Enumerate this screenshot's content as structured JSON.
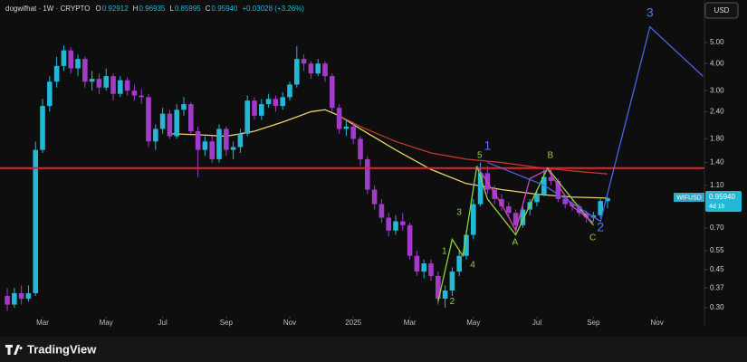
{
  "header": {
    "title": "dogwifhat · 1W · CRYPTO",
    "fields": [
      {
        "key": "O",
        "value": "0.92912"
      },
      {
        "key": "H",
        "value": "0.96935"
      },
      {
        "key": "L",
        "value": "0.85995"
      },
      {
        "key": "C",
        "value": "0.95940"
      }
    ],
    "change": "+0.03028 (+3.26%)"
  },
  "currency_button": "USD",
  "logo": "TradingView",
  "price_tag": {
    "symbol": "WIFUSD",
    "price": "0.95940",
    "countdown": "4d 1h"
  },
  "chart_data": {
    "type": "candlestick",
    "log_scale": true,
    "up_color": "#22b8d6",
    "down_color": "#a03cc8",
    "xlim": [
      -1.03,
      98.72
    ],
    "ylim": [
      0.2476,
      7.85
    ],
    "xticks": [
      {
        "value": 5,
        "label": "Mar"
      },
      {
        "value": 14,
        "label": "May"
      },
      {
        "value": 22,
        "label": "Jul"
      },
      {
        "value": 31,
        "label": "Sep"
      },
      {
        "value": 40,
        "label": "Nov"
      },
      {
        "value": 49,
        "label": "2025"
      },
      {
        "value": 57,
        "label": "Mar"
      },
      {
        "value": 66,
        "label": "May"
      },
      {
        "value": 75,
        "label": "Jul"
      },
      {
        "value": 83,
        "label": "Sep"
      },
      {
        "value": 92,
        "label": "Nov"
      }
    ],
    "yticks": [
      {
        "value": 5,
        "label": "5.00"
      },
      {
        "value": 4,
        "label": "4.00"
      },
      {
        "value": 3,
        "label": "3.00"
      },
      {
        "value": 2.4,
        "label": "2.40"
      },
      {
        "value": 1.8,
        "label": "1.80"
      },
      {
        "value": 1.4,
        "label": "1.40"
      },
      {
        "value": 1.1,
        "label": "1.10"
      },
      {
        "value": 0.7,
        "label": "0.70"
      },
      {
        "value": 0.55,
        "label": "0.55"
      },
      {
        "value": 0.45,
        "label": "0.45"
      },
      {
        "value": 0.37,
        "label": "0.37"
      },
      {
        "value": 0.3,
        "label": "0.30"
      }
    ],
    "x": [
      0,
      1,
      2,
      3,
      4,
      5,
      6,
      7,
      8,
      9,
      10,
      11,
      12,
      13,
      14,
      15,
      16,
      17,
      18,
      19,
      20,
      21,
      22,
      23,
      24,
      25,
      26,
      27,
      28,
      29,
      30,
      31,
      32,
      33,
      34,
      35,
      36,
      37,
      38,
      39,
      40,
      41,
      42,
      43,
      44,
      45,
      46,
      47,
      48,
      49,
      50,
      51,
      52,
      53,
      54,
      55,
      56,
      57,
      58,
      59,
      60,
      61,
      62,
      63,
      64,
      65,
      66,
      67,
      68,
      69,
      70,
      71,
      72,
      73,
      74,
      75,
      76,
      77,
      78,
      79,
      80,
      81,
      82,
      83,
      84,
      85
    ],
    "ohlc": [
      [
        0.34,
        0.37,
        0.29,
        0.31
      ],
      [
        0.31,
        0.37,
        0.3,
        0.35
      ],
      [
        0.35,
        0.38,
        0.31,
        0.33
      ],
      [
        0.33,
        0.38,
        0.32,
        0.35
      ],
      [
        0.35,
        1.75,
        0.34,
        1.6
      ],
      [
        1.6,
        2.75,
        1.55,
        2.55
      ],
      [
        2.55,
        3.5,
        2.4,
        3.3
      ],
      [
        3.3,
        4.3,
        3.1,
        3.9
      ],
      [
        3.9,
        4.85,
        3.7,
        4.6
      ],
      [
        4.6,
        4.75,
        3.6,
        3.8
      ],
      [
        3.8,
        4.4,
        3.5,
        4.2
      ],
      [
        4.2,
        4.3,
        3.1,
        3.3
      ],
      [
        3.3,
        3.7,
        3.0,
        3.4
      ],
      [
        3.4,
        3.6,
        2.9,
        3.1
      ],
      [
        3.1,
        3.8,
        3.0,
        3.5
      ],
      [
        3.5,
        3.6,
        2.7,
        2.9
      ],
      [
        2.9,
        3.5,
        2.8,
        3.35
      ],
      [
        3.35,
        3.45,
        2.85,
        3.0
      ],
      [
        3.0,
        3.2,
        2.7,
        2.85
      ],
      [
        2.85,
        3.05,
        2.6,
        2.8
      ],
      [
        2.8,
        2.9,
        1.65,
        1.75
      ],
      [
        1.75,
        2.1,
        1.6,
        2.0
      ],
      [
        2.0,
        2.5,
        1.9,
        2.35
      ],
      [
        2.35,
        2.45,
        1.8,
        1.85
      ],
      [
        1.85,
        2.6,
        1.8,
        2.45
      ],
      [
        2.45,
        2.8,
        2.3,
        2.6
      ],
      [
        2.6,
        2.65,
        1.9,
        1.95
      ],
      [
        1.95,
        2.05,
        1.2,
        1.6
      ],
      [
        1.6,
        1.85,
        1.5,
        1.75
      ],
      [
        1.75,
        1.85,
        1.4,
        1.45
      ],
      [
        1.45,
        2.1,
        1.4,
        2.0
      ],
      [
        2.0,
        2.05,
        1.5,
        1.6
      ],
      [
        1.6,
        1.75,
        1.45,
        1.65
      ],
      [
        1.65,
        2.0,
        1.55,
        1.9
      ],
      [
        1.9,
        2.85,
        1.85,
        2.7
      ],
      [
        2.7,
        2.8,
        2.2,
        2.3
      ],
      [
        2.3,
        2.75,
        2.2,
        2.6
      ],
      [
        2.6,
        2.9,
        2.5,
        2.75
      ],
      [
        2.75,
        2.85,
        2.4,
        2.55
      ],
      [
        2.55,
        2.95,
        2.45,
        2.8
      ],
      [
        2.8,
        3.3,
        2.7,
        3.2
      ],
      [
        3.2,
        4.8,
        3.1,
        4.2
      ],
      [
        4.2,
        4.4,
        3.7,
        4.0
      ],
      [
        4.0,
        4.1,
        3.4,
        3.6
      ],
      [
        3.6,
        4.2,
        3.5,
        4.0
      ],
      [
        4.0,
        4.1,
        3.3,
        3.5
      ],
      [
        3.5,
        3.6,
        2.4,
        2.5
      ],
      [
        2.5,
        2.6,
        1.9,
        2.0
      ],
      [
        2.0,
        2.2,
        1.85,
        2.05
      ],
      [
        2.05,
        2.15,
        1.7,
        1.8
      ],
      [
        1.8,
        1.85,
        1.35,
        1.45
      ],
      [
        1.45,
        1.5,
        1.0,
        1.05
      ],
      [
        1.05,
        1.1,
        0.85,
        0.9
      ],
      [
        0.9,
        0.95,
        0.74,
        0.78
      ],
      [
        0.78,
        0.82,
        0.64,
        0.68
      ],
      [
        0.68,
        0.8,
        0.65,
        0.75
      ],
      [
        0.75,
        0.82,
        0.68,
        0.72
      ],
      [
        0.72,
        0.74,
        0.5,
        0.52
      ],
      [
        0.52,
        0.55,
        0.42,
        0.44
      ],
      [
        0.44,
        0.5,
        0.41,
        0.48
      ],
      [
        0.48,
        0.5,
        0.4,
        0.42
      ],
      [
        0.42,
        0.44,
        0.31,
        0.33
      ],
      [
        0.33,
        0.38,
        0.3,
        0.36
      ],
      [
        0.36,
        0.46,
        0.34,
        0.44
      ],
      [
        0.44,
        0.55,
        0.42,
        0.52
      ],
      [
        0.52,
        0.68,
        0.5,
        0.65
      ],
      [
        0.65,
        0.95,
        0.62,
        0.9
      ],
      [
        0.9,
        1.4,
        0.88,
        1.25
      ],
      [
        1.25,
        1.35,
        1.0,
        1.05
      ],
      [
        1.05,
        1.1,
        0.9,
        0.95
      ],
      [
        0.95,
        1.0,
        0.84,
        0.88
      ],
      [
        0.88,
        0.92,
        0.78,
        0.82
      ],
      [
        0.82,
        0.85,
        0.66,
        0.72
      ],
      [
        0.72,
        0.88,
        0.7,
        0.85
      ],
      [
        0.85,
        0.95,
        0.8,
        0.92
      ],
      [
        0.92,
        1.05,
        0.88,
        1.0
      ],
      [
        1.0,
        1.3,
        0.98,
        1.2
      ],
      [
        1.2,
        1.32,
        1.1,
        1.15
      ],
      [
        1.15,
        1.18,
        0.92,
        0.95
      ],
      [
        0.95,
        0.98,
        0.86,
        0.9
      ],
      [
        0.9,
        0.94,
        0.84,
        0.88
      ],
      [
        0.88,
        0.9,
        0.79,
        0.82
      ],
      [
        0.82,
        0.84,
        0.74,
        0.78
      ],
      [
        0.78,
        0.83,
        0.75,
        0.8
      ],
      [
        0.8,
        0.95,
        0.78,
        0.93
      ],
      [
        0.92912,
        0.96935,
        0.85995,
        0.9594
      ]
    ],
    "averages": [
      {
        "color": "#e8d36a",
        "x": [
          23,
          27,
          31,
          35,
          39,
          43,
          45,
          47,
          50,
          55,
          60,
          65,
          70,
          75,
          80,
          85
        ],
        "values": [
          1.9,
          1.88,
          1.85,
          1.95,
          2.15,
          2.4,
          2.45,
          2.3,
          2.0,
          1.6,
          1.3,
          1.12,
          1.05,
          1.0,
          0.97,
          0.96
        ]
      },
      {
        "color": "#c0392b",
        "x": [
          47,
          50,
          55,
          60,
          65,
          70,
          75,
          80,
          85
        ],
        "values": [
          2.3,
          2.05,
          1.75,
          1.55,
          1.45,
          1.4,
          1.33,
          1.28,
          1.24
        ]
      }
    ],
    "level": {
      "value": 1.32,
      "color": "#e8202a"
    },
    "wave_lines": [
      {
        "color": "#8fd13a",
        "x": [
          61,
          63,
          64.5,
          66.5,
          68,
          70.5,
          72,
          76.5,
          80,
          83
        ],
        "values": [
          0.32,
          0.62,
          0.52,
          1.35,
          0.95,
          0.75,
          0.65,
          1.32,
          0.95,
          0.72
        ]
      },
      {
        "color": "#d63fc0",
        "x": [
          66.5,
          70,
          72,
          74,
          76.5,
          80,
          83
        ],
        "values": [
          1.35,
          0.9,
          0.68,
          1.18,
          1.3,
          0.88,
          0.74
        ]
      },
      {
        "color": "#4a63e0",
        "x": [
          68,
          76,
          84,
          91,
          98.5
        ],
        "values": [
          1.4,
          1.1,
          0.75,
          5.9,
          3.5
        ]
      }
    ],
    "wave_labels": [
      {
        "label": "1",
        "color": "#8fd13a",
        "x": 61.9,
        "value": 0.545
      },
      {
        "label": "2",
        "color": "#8fd13a",
        "x": 63,
        "value": 0.32
      },
      {
        "label": "3",
        "color": "#8fd13a",
        "x": 64,
        "value": 0.823
      },
      {
        "label": "4",
        "color": "#8fd13a",
        "x": 65.9,
        "value": 0.472
      },
      {
        "label": "5",
        "color": "#8fd13a",
        "x": 66.9,
        "value": 1.51
      },
      {
        "label": "A",
        "color": "#8fd13a",
        "x": 71.9,
        "value": 0.6
      },
      {
        "label": "B",
        "color": "#8fd13a",
        "x": 76.9,
        "value": 1.51
      },
      {
        "label": "C",
        "color": "#8fd13a",
        "x": 82.9,
        "value": 0.63
      },
      {
        "label": "1",
        "color": "#4a7bf0",
        "x": 68,
        "value": 1.66
      },
      {
        "label": "2",
        "color": "#4a7bf0",
        "x": 84,
        "value": 0.7
      },
      {
        "label": "3",
        "color": "#4a7bf0",
        "x": 91,
        "value": 6.8
      }
    ]
  }
}
